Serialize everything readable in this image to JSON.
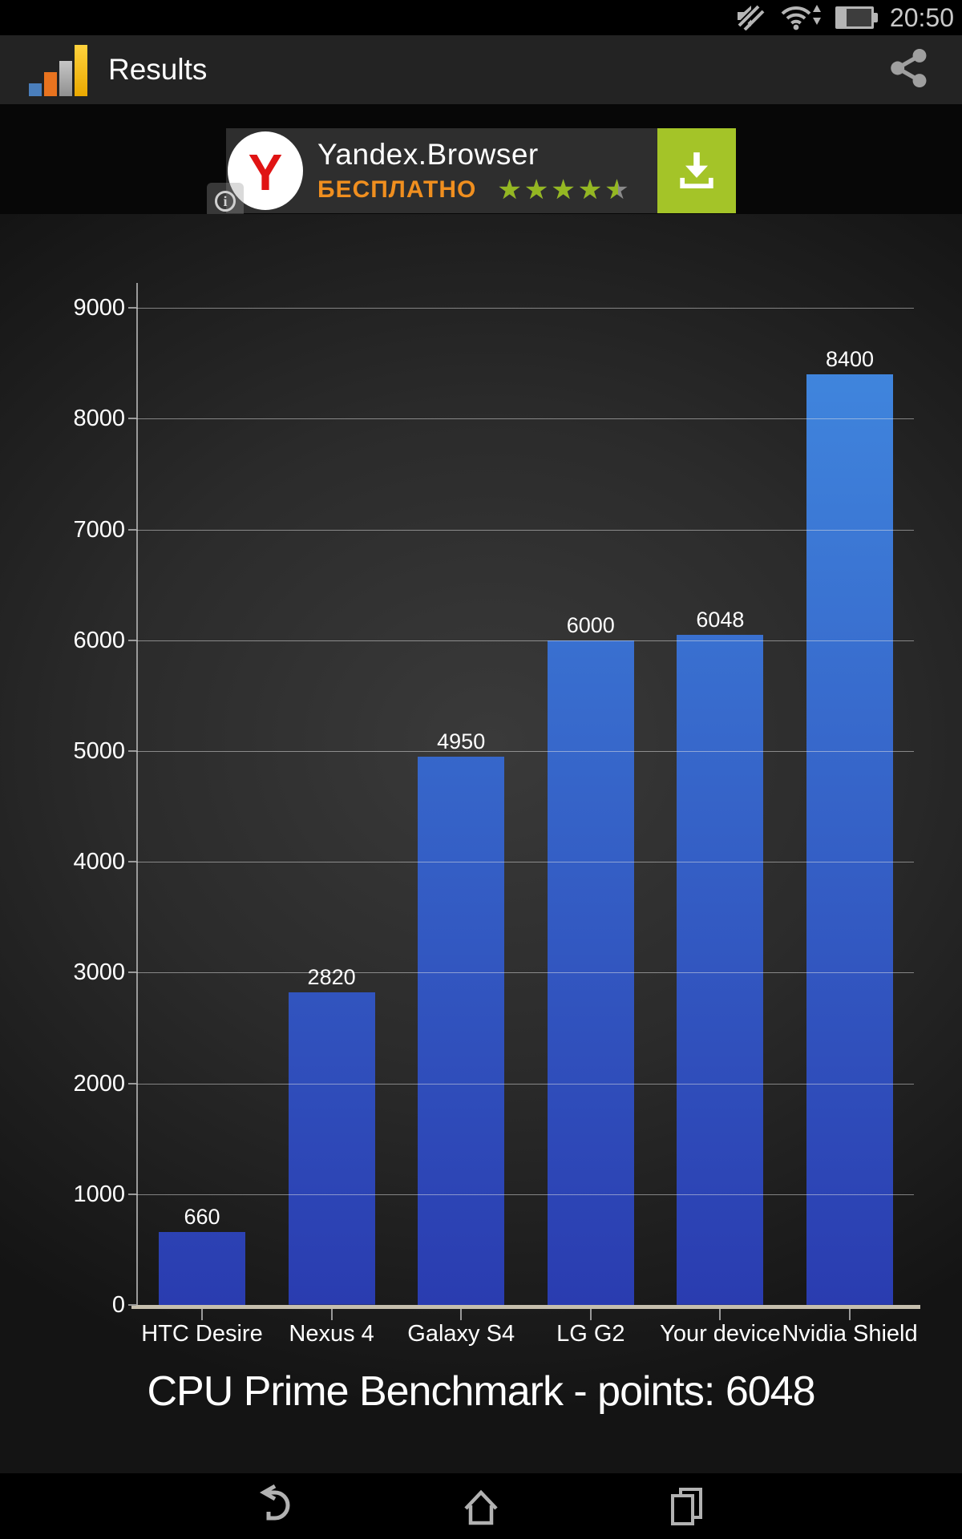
{
  "status_bar": {
    "time": "20:50",
    "icons": [
      "mute-icon",
      "wifi-icon",
      "battery-icon"
    ],
    "battery_level_percent": 30
  },
  "action_bar": {
    "title": "Results",
    "app_icon": "bar-chart-logo-icon",
    "share_icon": "share-icon",
    "logo_bar_colors": [
      "#4a7ebb",
      "#e8731f",
      "#b0b0b0",
      "#f3b900"
    ]
  },
  "ad_banner": {
    "app_name": "Yandex.Browser",
    "price_label": "БЕСПЛАТНО",
    "rating": 4.5,
    "stars_text": "★★★★★",
    "logo_letter": "Y",
    "info_letter": "i",
    "icons": [
      "yandex-logo-icon",
      "info-icon",
      "download-icon"
    ],
    "colors": {
      "price": "#f08f1f",
      "star_filled": "#94b722",
      "star_empty": "#8a8a8a",
      "download_button": "#a4c428",
      "logo_letter": "#e01414"
    }
  },
  "chart_data": {
    "type": "bar",
    "categories": [
      "HTC Desire",
      "Nexus 4",
      "Galaxy S4",
      "LG G2",
      "Your device",
      "Nvidia Shield"
    ],
    "values": [
      660,
      2820,
      4950,
      6000,
      6048,
      8400
    ],
    "title": "CPU Prime Benchmark - points: 6048",
    "xlabel": "",
    "ylabel": "",
    "ylim": [
      0,
      9000
    ],
    "ytick_step": 1000,
    "grid": true,
    "legend": "none",
    "value_labels": true,
    "bar_color_top": "#418ae0",
    "bar_color_bottom": "#2a3cb0"
  },
  "nav_bar": {
    "icons": [
      "back-icon",
      "home-icon",
      "recents-icon"
    ]
  }
}
